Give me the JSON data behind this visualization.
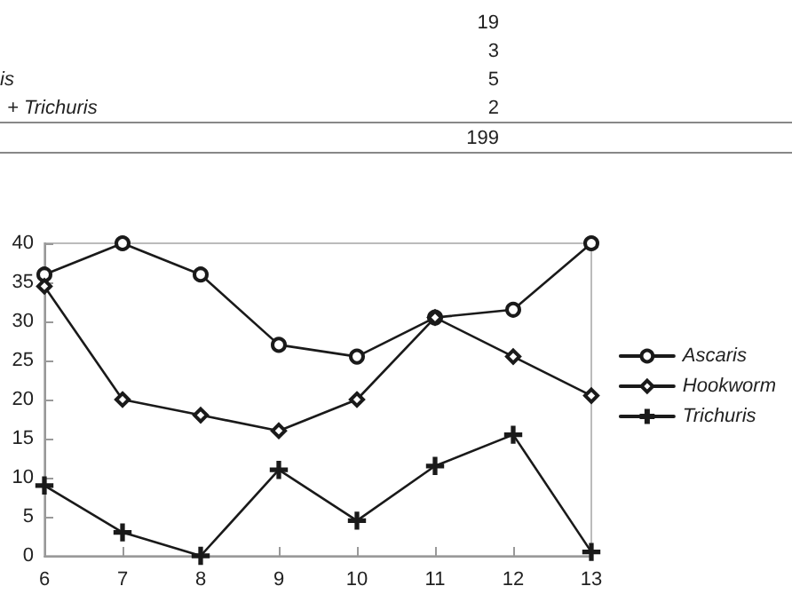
{
  "chart_data": {
    "type": "line",
    "annotations": [
      "19",
      "3",
      "is",
      "5",
      "+ Trichuris",
      "2",
      "199"
    ],
    "x": [
      6,
      7,
      8,
      9,
      10,
      11,
      12,
      13
    ],
    "xlim": [
      6,
      13
    ],
    "xticks": [
      6,
      7,
      8,
      9,
      10,
      11,
      12,
      13
    ],
    "ylim": [
      0,
      40
    ],
    "yticks": [
      0,
      5,
      10,
      15,
      20,
      25,
      30,
      35,
      40
    ],
    "series": [
      {
        "name": "Ascaris",
        "color": "#1a1a1a",
        "marker": "circle",
        "values": [
          36,
          40,
          36,
          27,
          25.5,
          30.5,
          31.5,
          40
        ]
      },
      {
        "name": "Hookworm",
        "color": "#1a1a1a",
        "marker": "diamond",
        "values": [
          34.5,
          20,
          18,
          16,
          20,
          30.5,
          25.5,
          20.5
        ]
      },
      {
        "name": "Trichuris",
        "color": "#1a1a1a",
        "marker": "cross",
        "values": [
          9,
          3,
          0,
          11,
          4.5,
          11.5,
          15.5,
          0.5
        ]
      }
    ],
    "grid": false,
    "legend": "right",
    "line_style": "solid"
  }
}
